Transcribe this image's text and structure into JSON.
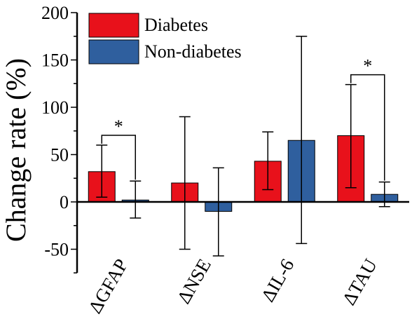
{
  "chart_data": {
    "type": "bar",
    "ylabel": "Change rate (%)",
    "ylim": [
      -75,
      200
    ],
    "y_ticks": [
      "-50",
      "0",
      "50",
      "100",
      "150",
      "200"
    ],
    "grid": false,
    "legend_position": "top-left",
    "categories": [
      "ΔGFAP",
      "ΔNSE",
      "ΔIL-6",
      "ΔTAU"
    ],
    "series": [
      {
        "name": "Diabetes",
        "color": "#e8111b",
        "values": [
          32,
          20,
          43,
          70
        ],
        "error_high": [
          60,
          90,
          74,
          124
        ],
        "error_low": [
          5,
          -50,
          13,
          15
        ]
      },
      {
        "name": "Non-diabetes",
        "color": "#2f5f9e",
        "values": [
          2,
          -10,
          65,
          8
        ],
        "error_high": [
          22,
          36,
          175,
          21
        ],
        "error_low": [
          -17,
          -57,
          -44,
          -5
        ]
      }
    ],
    "significance": [
      {
        "category_index": 0,
        "label": "*"
      },
      {
        "category_index": 3,
        "label": "*"
      }
    ]
  }
}
